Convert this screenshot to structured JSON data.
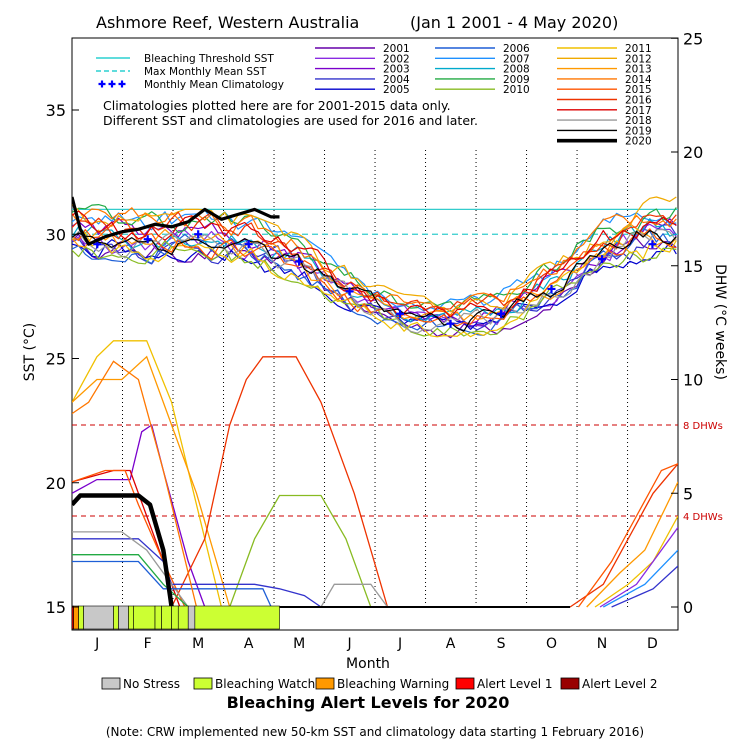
{
  "chart_data": {
    "type": "line",
    "title": "Ashmore Reef, Western Australia",
    "date_range": "(Jan 1 2001 - 4 May 2020)",
    "xlabel": "Month",
    "ylabel_left": "SST (°C)",
    "ylabel_right": "DHW (°C weeks)",
    "ylim_left": [
      15,
      37.5
    ],
    "ylim_right": [
      0,
      25
    ],
    "months": [
      "J",
      "F",
      "M",
      "A",
      "M",
      "J",
      "J",
      "A",
      "S",
      "O",
      "N",
      "D"
    ],
    "yticks_left": [
      15,
      20,
      25,
      30,
      35
    ],
    "yticks_right": [
      0,
      5,
      10,
      15,
      20,
      25
    ],
    "legend_left": [
      {
        "label": "Bleaching Threshold SST",
        "color": "#00c8c8",
        "style": "solid"
      },
      {
        "label": "Max Monthly Mean SST",
        "color": "#00c8c8",
        "style": "dashed"
      },
      {
        "label": "Monthly Mean Climatology",
        "color": "#0000ff",
        "style": "plus"
      }
    ],
    "years": [
      {
        "year": "2001",
        "color": "#6600aa"
      },
      {
        "year": "2002",
        "color": "#8a2be2"
      },
      {
        "year": "2003",
        "color": "#7a00cc"
      },
      {
        "year": "2004",
        "color": "#3333cc"
      },
      {
        "year": "2005",
        "color": "#0000cd"
      },
      {
        "year": "2006",
        "color": "#1e5fd6"
      },
      {
        "year": "2007",
        "color": "#1e90ff"
      },
      {
        "year": "2008",
        "color": "#00aacc"
      },
      {
        "year": "2009",
        "color": "#22aa44"
      },
      {
        "year": "2010",
        "color": "#88bb22"
      },
      {
        "year": "2011",
        "color": "#f0c000"
      },
      {
        "year": "2012",
        "color": "#f0aa00"
      },
      {
        "year": "2013",
        "color": "#ff9900"
      },
      {
        "year": "2014",
        "color": "#ff7700"
      },
      {
        "year": "2015",
        "color": "#ff5500"
      },
      {
        "year": "2016",
        "color": "#ee3300"
      },
      {
        "year": "2017",
        "color": "#dd0000"
      },
      {
        "year": "2018",
        "color": "#999999"
      },
      {
        "year": "2019",
        "color": "#000000"
      },
      {
        "year": "2020",
        "color": "#000000"
      }
    ],
    "note_lines": [
      "Climatologies plotted here are for 2001-2015 data only.",
      "Different SST and climatologies are used for 2016 and later."
    ],
    "dhw_threshold_labels": [
      {
        "label": "8 DHWs",
        "dhw": 8
      },
      {
        "label": "4 DHWs",
        "dhw": 4
      }
    ],
    "bleaching_threshold_sst": 31.0,
    "max_monthly_mean_sst": 30.0,
    "monthly_mean_climatology": [
      29.6,
      29.8,
      30.0,
      29.6,
      28.9,
      27.7,
      26.8,
      26.4,
      26.8,
      27.8,
      29.0,
      29.6
    ],
    "sst_2020": {
      "day": [
        0,
        5,
        10,
        20,
        30,
        40,
        50,
        60,
        70,
        80,
        90,
        100,
        110,
        120,
        125
      ],
      "sst": [
        31.5,
        30.2,
        29.6,
        29.9,
        30.1,
        30.2,
        30.4,
        30.3,
        30.5,
        31.0,
        30.6,
        30.8,
        31.0,
        30.7,
        30.7
      ]
    },
    "dhw_2020": {
      "day": [
        0,
        5,
        35,
        40,
        47,
        55,
        59,
        60
      ],
      "dhw": [
        4.5,
        4.9,
        4.9,
        4.9,
        4.5,
        2.5,
        0.5,
        0
      ]
    },
    "sst_envelope": {
      "months": [
        "Jan",
        "Feb",
        "Mar",
        "Apr",
        "May",
        "Jun",
        "Jul",
        "Aug",
        "Sep",
        "Oct",
        "Nov",
        "Dec"
      ],
      "low": [
        29.0,
        28.8,
        28.9,
        28.6,
        28.0,
        26.8,
        26.0,
        25.8,
        26.0,
        27.0,
        28.4,
        29.0
      ],
      "high": [
        31.2,
        31.0,
        31.0,
        30.8,
        30.0,
        28.6,
        27.6,
        27.4,
        27.8,
        29.0,
        30.6,
        31.5
      ]
    },
    "bleaching_alert_2020": [
      {
        "from": 0,
        "to": 1,
        "level": "Alert Level 1"
      },
      {
        "from": 1,
        "to": 4,
        "level": "Bleaching Warning"
      },
      {
        "from": 4,
        "to": 7,
        "level": "Bleaching Watch"
      },
      {
        "from": 7,
        "to": 25,
        "level": "No Stress"
      },
      {
        "from": 25,
        "to": 28,
        "level": "Bleaching Watch"
      },
      {
        "from": 28,
        "to": 34,
        "level": "No Stress"
      },
      {
        "from": 34,
        "to": 37,
        "level": "Bleaching Watch"
      },
      {
        "from": 37,
        "to": 50,
        "level": "Bleaching Watch"
      },
      {
        "from": 50,
        "to": 54,
        "level": "Bleaching Watch"
      },
      {
        "from": 54,
        "to": 60,
        "level": "Bleaching Watch"
      },
      {
        "from": 60,
        "to": 64,
        "level": "Bleaching Watch"
      },
      {
        "from": 64,
        "to": 70,
        "level": "Bleaching Watch"
      },
      {
        "from": 70,
        "to": 74,
        "level": "No Stress"
      },
      {
        "from": 74,
        "to": 125,
        "level": "Bleaching Watch"
      }
    ],
    "alert_legend_title": "Bleaching Alert Levels for 2020",
    "alert_legend": [
      {
        "label": "No Stress",
        "color": "#c8c8c8"
      },
      {
        "label": "Bleaching Watch",
        "color": "#ccff33"
      },
      {
        "label": "Bleaching Warning",
        "color": "#ff9900"
      },
      {
        "label": "Alert Level 1",
        "color": "#ff0000"
      },
      {
        "label": "Alert Level 2",
        "color": "#990000"
      }
    ],
    "footnote": "(Note: CRW implemented new 50-km SST and climatology data starting 1 February 2016)"
  }
}
